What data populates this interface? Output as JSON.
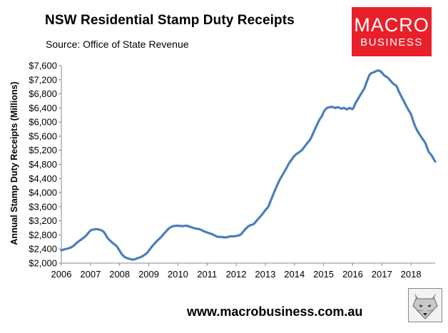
{
  "chart_data": {
    "type": "line",
    "title": "NSW Residential Stamp Duty Receipts",
    "subtitle": "Source: Office of State Revenue",
    "xlabel": "",
    "ylabel": "Annual Stamp Duty Receipts (Millions)",
    "ylim": [
      2000,
      7600
    ],
    "xlim": [
      2006,
      2018.83
    ],
    "y_ticks": [
      2000,
      2400,
      2800,
      3200,
      3600,
      4000,
      4400,
      4800,
      5200,
      5600,
      6000,
      6400,
      6800,
      7200,
      7600
    ],
    "y_tick_labels": [
      "$2,000",
      "$2,400",
      "$2,800",
      "$3,200",
      "$3,600",
      "$4,000",
      "$4,400",
      "$4,800",
      "$5,200",
      "$5,600",
      "$6,000",
      "$6,400",
      "$6,800",
      "$7,200",
      "$7,600"
    ],
    "x_ticks": [
      2006,
      2007,
      2008,
      2009,
      2010,
      2011,
      2012,
      2013,
      2014,
      2015,
      2016,
      2017,
      2018
    ],
    "x_tick_labels": [
      "2006",
      "2007",
      "2008",
      "2009",
      "2010",
      "2011",
      "2012",
      "2013",
      "2014",
      "2015",
      "2016",
      "2017",
      "2018"
    ],
    "grid": false,
    "line_color": "#4a7ebb",
    "series": [
      {
        "name": "Annual Stamp Duty Receipts",
        "x": [
          2006.0,
          2006.1,
          2006.25,
          2006.4,
          2006.55,
          2006.7,
          2006.85,
          2007.0,
          2007.15,
          2007.3,
          2007.45,
          2007.6,
          2007.75,
          2007.9,
          2008.0,
          2008.1,
          2008.2,
          2008.35,
          2008.45,
          2008.55,
          2008.65,
          2008.75,
          2008.85,
          2008.95,
          2009.1,
          2009.25,
          2009.4,
          2009.55,
          2009.7,
          2009.85,
          2010.0,
          2010.15,
          2010.3,
          2010.45,
          2010.6,
          2010.75,
          2010.9,
          2011.0,
          2011.2,
          2011.35,
          2011.5,
          2011.65,
          2011.8,
          2011.9,
          2012.0,
          2012.15,
          2012.3,
          2012.45,
          2012.6,
          2012.75,
          2012.9,
          2013.0,
          2013.1,
          2013.2,
          2013.35,
          2013.5,
          2013.65,
          2013.8,
          2013.9,
          2014.0,
          2014.1,
          2014.25,
          2014.4,
          2014.55,
          2014.7,
          2014.85,
          2014.95,
          2015.0,
          2015.1,
          2015.2,
          2015.3,
          2015.4,
          2015.5,
          2015.6,
          2015.7,
          2015.8,
          2015.9,
          2016.0,
          2016.1,
          2016.2,
          2016.3,
          2016.4,
          2016.5,
          2016.6,
          2016.75,
          2016.85,
          2016.95,
          2017.0,
          2017.1,
          2017.2,
          2017.3,
          2017.4,
          2017.5,
          2017.6,
          2017.7,
          2017.8,
          2017.9,
          2018.0,
          2018.1,
          2018.2,
          2018.3,
          2018.4,
          2018.5,
          2018.6,
          2018.7,
          2018.83
        ],
        "values": [
          2360,
          2390,
          2420,
          2480,
          2590,
          2680,
          2780,
          2920,
          2960,
          2950,
          2890,
          2700,
          2580,
          2480,
          2350,
          2230,
          2160,
          2120,
          2100,
          2120,
          2150,
          2180,
          2230,
          2300,
          2460,
          2600,
          2720,
          2860,
          2990,
          3050,
          3060,
          3050,
          3060,
          3020,
          2980,
          2960,
          2900,
          2870,
          2810,
          2750,
          2740,
          2730,
          2760,
          2760,
          2770,
          2810,
          2950,
          3060,
          3110,
          3250,
          3390,
          3500,
          3600,
          3800,
          4100,
          4370,
          4580,
          4810,
          4930,
          5040,
          5110,
          5200,
          5360,
          5520,
          5790,
          6050,
          6180,
          6280,
          6390,
          6420,
          6430,
          6400,
          6420,
          6380,
          6400,
          6360,
          6400,
          6370,
          6540,
          6680,
          6820,
          6960,
          7180,
          7360,
          7420,
          7460,
          7440,
          7400,
          7310,
          7260,
          7170,
          7080,
          7020,
          6840,
          6680,
          6520,
          6360,
          6220,
          5970,
          5780,
          5640,
          5520,
          5390,
          5170,
          5060,
          4880
        ]
      }
    ]
  },
  "logo": {
    "line1": "MACRO",
    "line2": "BUSINESS"
  },
  "footer": {
    "website": "www.macrobusiness.com.au"
  }
}
